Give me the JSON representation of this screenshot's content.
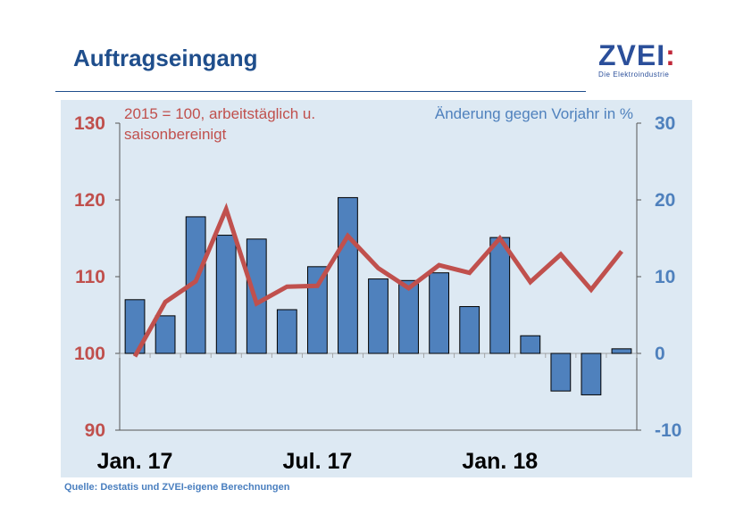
{
  "header": {
    "title": "Auftragseingang",
    "logo_text": "ZVEI",
    "logo_colon": ":",
    "logo_subtitle": "Die Elektroindustrie"
  },
  "footer": {
    "source": "Quelle: Destatis und ZVEI-eigene Berechnungen"
  },
  "colors": {
    "line": "#c0504d",
    "bars": "#4f81bd",
    "plot_bg": "#dde9f3",
    "left_axis": "#c0504d",
    "right_axis": "#4f81bd"
  },
  "chart_data": {
    "type": "bar",
    "annotations": {
      "left": "2015 = 100, arbeitstäglich u. saisonbereinigt",
      "left_line1": "2015 = 100, arbeitstäglich u.",
      "left_line2": "saisonbereinigt",
      "right": "Änderung gegen Vorjahr in %"
    },
    "x_tick_labels": [
      "Jan. 17",
      "Jul. 17",
      "Jan. 18"
    ],
    "x_tick_index": [
      0,
      6,
      12
    ],
    "left_axis": {
      "min": 90,
      "max": 130,
      "ticks": [
        90,
        100,
        110,
        120,
        130
      ]
    },
    "right_axis": {
      "min": -10,
      "max": 30,
      "ticks": [
        -10,
        0,
        10,
        20,
        30
      ]
    },
    "series": [
      {
        "type": "bar",
        "axis": "right",
        "values": [
          7.0,
          4.9,
          17.8,
          15.4,
          14.9,
          5.7,
          11.3,
          20.3,
          9.7,
          9.5,
          10.5,
          6.1,
          15.1,
          2.3,
          -4.9,
          -5.4,
          0.6
        ]
      },
      {
        "type": "line",
        "axis": "left",
        "values": [
          99.6,
          106.7,
          109.4,
          118.8,
          106.5,
          108.7,
          108.8,
          115.3,
          111.1,
          108.5,
          111.5,
          110.5,
          115.0,
          109.3,
          112.9,
          108.3,
          113.3
        ]
      }
    ]
  }
}
